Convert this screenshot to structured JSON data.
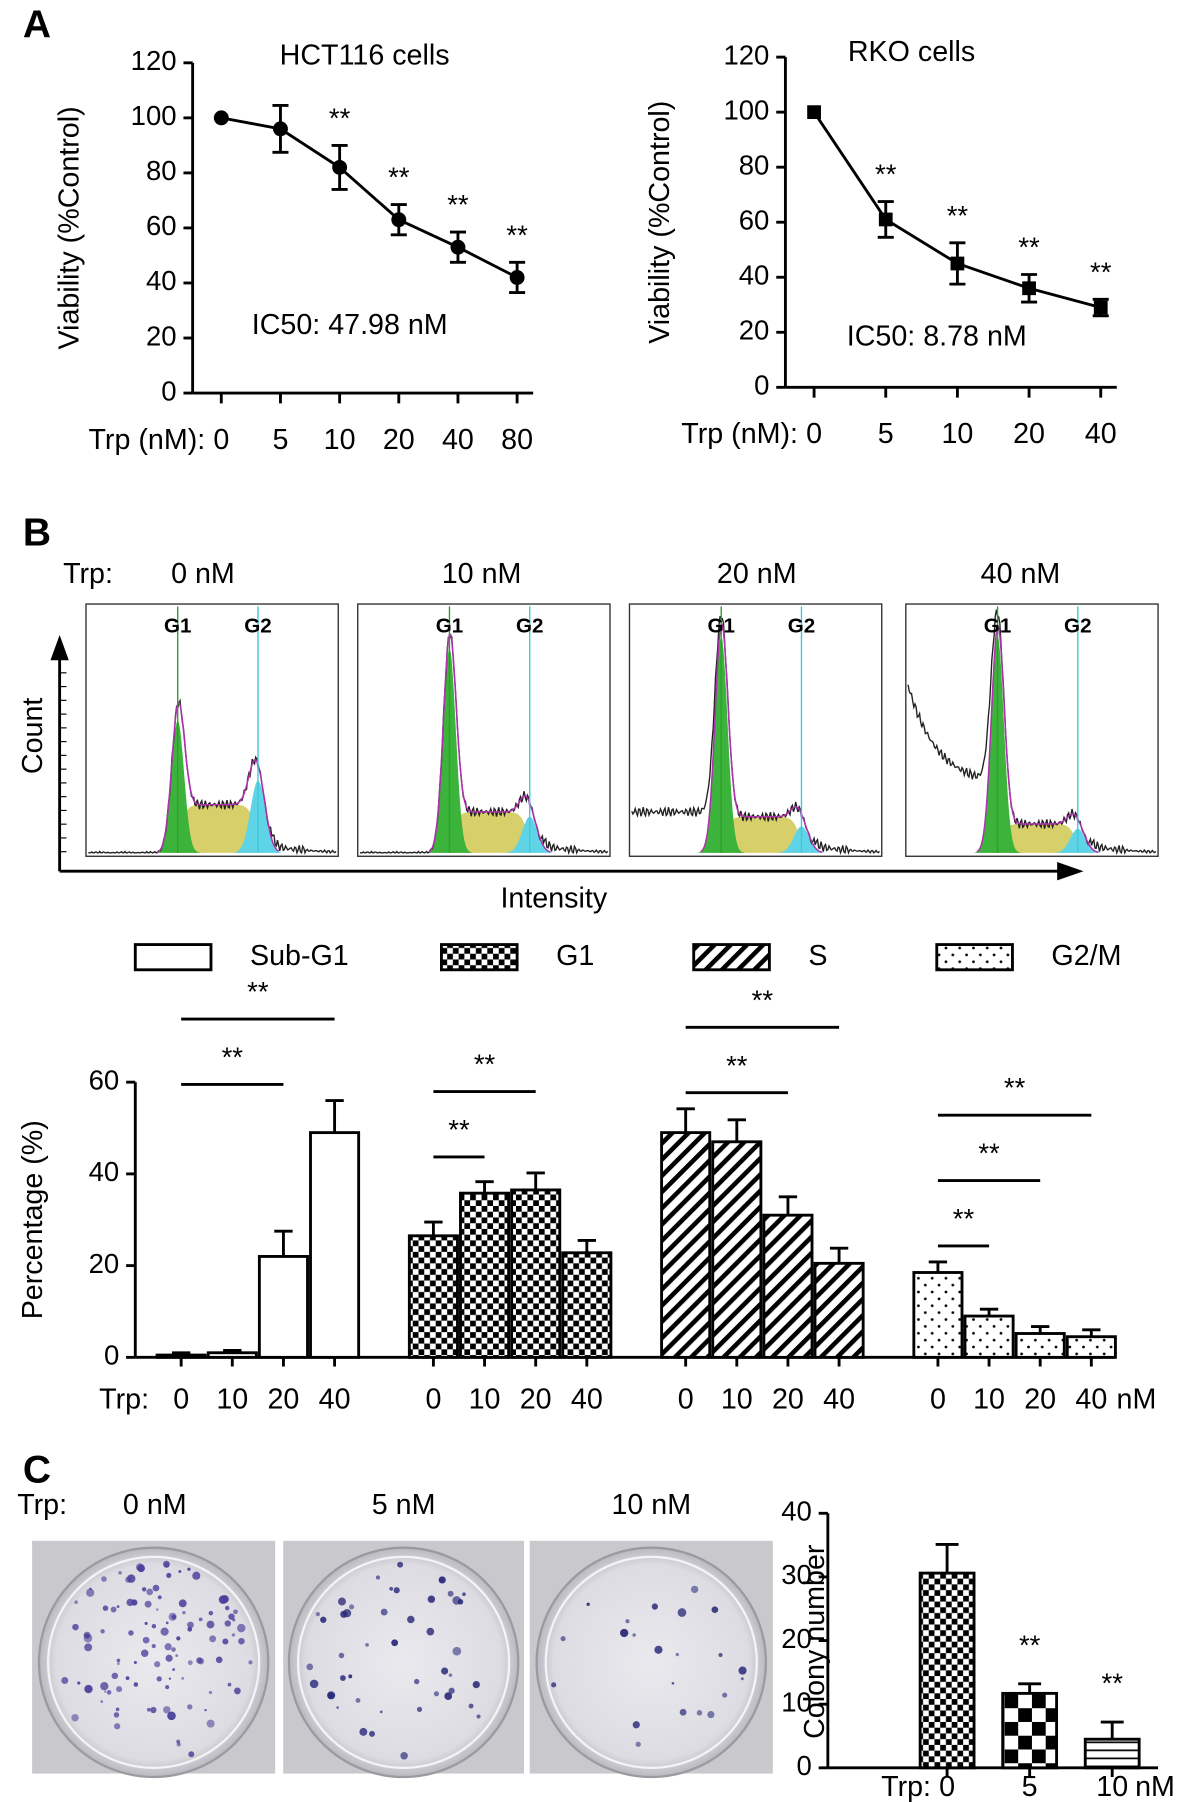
{
  "panel_labels": [
    "A",
    "B",
    "C"
  ],
  "chart_data": [
    {
      "type": "line",
      "title": "HCT116 cells",
      "annotation": "IC50: 47.98 nM",
      "x_label": "Trp (nM):",
      "y_label": "Viability (%Control)",
      "categories": [
        "0",
        "5",
        "10",
        "20",
        "40",
        "80"
      ],
      "series": [
        {
          "color": "#000000",
          "marker": "circle",
          "values": [
            100,
            96,
            82,
            63,
            53,
            42
          ],
          "errors": [
            null,
            8.5,
            8,
            5.5,
            5.5,
            5.5
          ],
          "significance": [
            null,
            null,
            "**",
            "**",
            "**",
            "**"
          ]
        }
      ],
      "ylim": [
        0,
        120
      ],
      "yticks": [
        0,
        20,
        40,
        60,
        80,
        100,
        120
      ]
    },
    {
      "type": "line",
      "title": "RKO cells",
      "annotation": "IC50: 8.78 nM",
      "x_label": "Trp (nM):",
      "y_label": "Viability (%Control)",
      "categories": [
        "0",
        "5",
        "10",
        "20",
        "40"
      ],
      "series": [
        {
          "color": "#000000",
          "marker": "square",
          "values": [
            100,
            61,
            45,
            36,
            29
          ],
          "errors": [
            null,
            6.5,
            7.5,
            5,
            3
          ],
          "significance": [
            null,
            "**",
            "**",
            "**",
            "**"
          ]
        }
      ],
      "ylim": [
        0,
        120
      ],
      "yticks": [
        0,
        20,
        40,
        60,
        80,
        100,
        120
      ]
    },
    {
      "type": "grouped_bar",
      "legend": "top",
      "x_label": "Trp:",
      "x_unit": "nM",
      "y_label": "Percentage (%)",
      "categories": [
        "0",
        "10",
        "20",
        "40"
      ],
      "series": [
        {
          "name": "Sub-G1",
          "pattern": "plain",
          "values": [
            0.5,
            1,
            22,
            49
          ],
          "errors": [
            0.5,
            0.5,
            5.5,
            7
          ]
        },
        {
          "name": "G1",
          "pattern": "fine-checker",
          "values": [
            26.5,
            35.8,
            36.5,
            22.8
          ],
          "errors": [
            3,
            2.5,
            3.7,
            2.7
          ]
        },
        {
          "name": "S",
          "pattern": "hatch",
          "values": [
            49,
            47,
            31,
            20.5
          ],
          "errors": [
            5.2,
            4.8,
            4,
            3.3
          ]
        },
        {
          "name": "G2/M",
          "pattern": "dots",
          "values": [
            18.5,
            9,
            5.2,
            4.5
          ],
          "errors": [
            2.3,
            1.5,
            1.5,
            1.5
          ]
        }
      ],
      "significance": [
        {
          "series": 0,
          "from": 0,
          "to": 2,
          "label": "**"
        },
        {
          "series": 0,
          "from": 0,
          "to": 3,
          "label": "**"
        },
        {
          "series": 1,
          "from": 0,
          "to": 1,
          "label": "**"
        },
        {
          "series": 1,
          "from": 0,
          "to": 2,
          "label": "**"
        },
        {
          "series": 2,
          "from": 0,
          "to": 2,
          "label": "**"
        },
        {
          "series": 2,
          "from": 0,
          "to": 3,
          "label": "**"
        },
        {
          "series": 3,
          "from": 0,
          "to": 1,
          "label": "**"
        },
        {
          "series": 3,
          "from": 0,
          "to": 2,
          "label": "**"
        },
        {
          "series": 3,
          "from": 0,
          "to": 3,
          "label": "**"
        }
      ],
      "ylim": [
        0,
        60
      ],
      "yticks": [
        0,
        20,
        40,
        60
      ]
    },
    {
      "type": "bar",
      "x_label": "Trp:",
      "x_unit": "nM",
      "y_label": "Colony number",
      "categories": [
        "0",
        "5",
        "10"
      ],
      "values": [
        30.6,
        11.7,
        4.5
      ],
      "errors": [
        4.5,
        1.5,
        2.7
      ],
      "patterns": [
        "fine-checker",
        "coarse-checker",
        "lines"
      ],
      "significance": [
        null,
        "**",
        "**"
      ],
      "ylim": [
        0,
        40
      ],
      "yticks": [
        0,
        10,
        20,
        30,
        40
      ]
    }
  ],
  "flow_cytometry": {
    "prefix": "Trp:",
    "panels": [
      "0 nM",
      "10 nM",
      "20 nM",
      "40 nM"
    ],
    "gate_labels": [
      "G1",
      "G2"
    ],
    "y_label": "Count",
    "x_label": "Intensity"
  },
  "colony_assay": {
    "prefix": "Trp:",
    "panels": [
      "0 nM",
      "5 nM",
      "10 nM"
    ]
  }
}
